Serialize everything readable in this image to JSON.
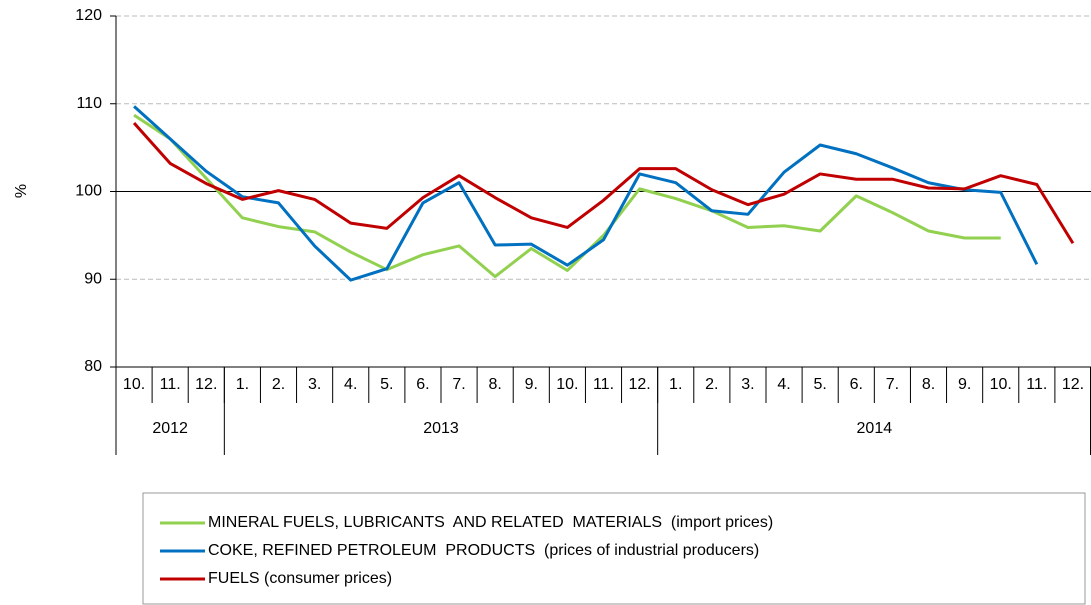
{
  "chart_data": {
    "type": "line",
    "y_label": "%",
    "categories": [
      "10.",
      "11.",
      "12.",
      "1.",
      "2.",
      "3.",
      "4.",
      "5.",
      "6.",
      "7.",
      "8.",
      "9.",
      "10.",
      "11.",
      "12.",
      "1.",
      "2.",
      "3.",
      "4.",
      "5.",
      "6.",
      "7.",
      "8.",
      "9.",
      "10.",
      "11.",
      "12."
    ],
    "groups": [
      {
        "label": "2012",
        "count": 3
      },
      {
        "label": "2013",
        "count": 12
      },
      {
        "label": "2014",
        "count": 12
      }
    ],
    "series": [
      {
        "name": "MINERAL FUELS, LUBRICANTS  AND RELATED  MATERIALS  (import prices)",
        "color": "#92d050",
        "values": [
          108.7,
          106,
          101.5,
          97,
          96,
          95.4,
          93.1,
          91.1,
          92.8,
          93.8,
          90.3,
          93.5,
          91,
          95,
          100.3,
          99.2,
          97.8,
          95.9,
          96.1,
          95.5,
          99.5,
          97.6,
          95.5,
          94.7,
          94.7,
          null,
          null
        ]
      },
      {
        "name": "COKE, REFINED PETROLEUM  PRODUCTS  (prices of industrial producers)",
        "color": "#0070c0",
        "values": [
          109.7,
          106,
          102.3,
          99.4,
          98.7,
          93.8,
          89.9,
          91.2,
          98.7,
          101,
          93.9,
          94,
          91.6,
          94.5,
          102,
          101,
          97.8,
          97.4,
          102.2,
          105.3,
          104.3,
          102.7,
          101,
          100.2,
          99.9,
          91.7,
          null
        ]
      },
      {
        "name": "FUELS (consumer prices)",
        "color": "#c00000",
        "values": [
          107.8,
          103.2,
          100.9,
          99.1,
          100.1,
          99.1,
          96.4,
          95.8,
          99.3,
          101.8,
          99.3,
          97,
          95.9,
          99,
          102.6,
          102.6,
          100.2,
          98.5,
          99.7,
          102,
          101.4,
          101.4,
          100.4,
          100.3,
          101.8,
          100.8,
          94.1
        ]
      }
    ],
    "ylim": [
      80,
      120
    ],
    "yticks": [
      80,
      90,
      100,
      110,
      120
    ],
    "reference_line": 100,
    "grid": true
  }
}
